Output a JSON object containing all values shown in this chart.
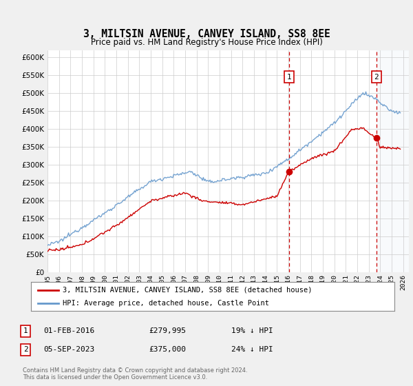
{
  "title": "3, MILTSIN AVENUE, CANVEY ISLAND, SS8 8EE",
  "subtitle": "Price paid vs. HM Land Registry's House Price Index (HPI)",
  "ylim": [
    0,
    620000
  ],
  "ytick_vals": [
    0,
    50000,
    100000,
    150000,
    200000,
    250000,
    300000,
    350000,
    400000,
    450000,
    500000,
    550000,
    600000
  ],
  "xmin_year": 1995,
  "xmax_year": 2026,
  "xtick_years": [
    1995,
    1996,
    1997,
    1998,
    1999,
    2000,
    2001,
    2002,
    2003,
    2004,
    2005,
    2006,
    2007,
    2008,
    2009,
    2010,
    2011,
    2012,
    2013,
    2014,
    2015,
    2016,
    2017,
    2018,
    2019,
    2020,
    2021,
    2022,
    2023,
    2024,
    2025,
    2026
  ],
  "purchase1_x": 2016.08,
  "purchase1_y": 279995,
  "purchase2_x": 2023.67,
  "purchase2_y": 375000,
  "hpi_color": "#6699cc",
  "price_color": "#cc0000",
  "vline_color": "#cc0000",
  "shade_color": "#dce6f1",
  "legend_line1": "3, MILTSIN AVENUE, CANVEY ISLAND, SS8 8EE (detached house)",
  "legend_line2": "HPI: Average price, detached house, Castle Point",
  "footer1": "Contains HM Land Registry data © Crown copyright and database right 2024.",
  "footer2": "This data is licensed under the Open Government Licence v3.0.",
  "background_color": "#f0f0f0",
  "plot_bg_color": "#ffffff"
}
